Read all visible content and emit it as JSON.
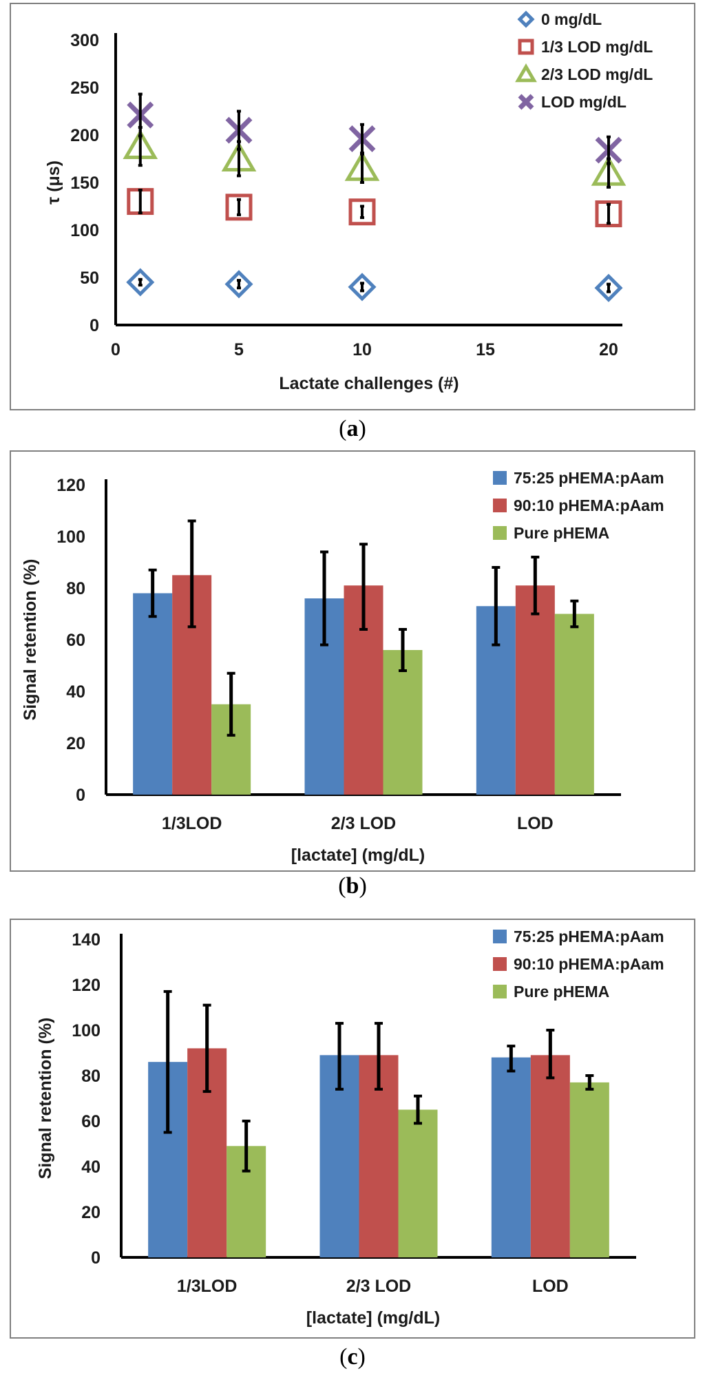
{
  "captions": {
    "a": "a",
    "b": "b",
    "c": "c"
  },
  "chart_data": [
    {
      "id": "a",
      "type": "scatter",
      "title": "",
      "xlabel": "Lactate challenges (#)",
      "ylabel": "τ (μs)",
      "xlim": [
        0,
        20
      ],
      "ylim": [
        0,
        300
      ],
      "xticks": [
        0,
        5,
        10,
        15,
        20
      ],
      "yticks": [
        0,
        50,
        100,
        150,
        200,
        250,
        300
      ],
      "legend_position": "top-right",
      "x": [
        1,
        5,
        10,
        20
      ],
      "series": [
        {
          "name": "0 mg/dL",
          "marker": "diamond",
          "color": "#4f81bd",
          "values": [
            45,
            43,
            40,
            39
          ],
          "err": [
            3,
            4,
            4,
            4
          ]
        },
        {
          "name": "1/3 LOD mg/dL",
          "marker": "square",
          "color": "#c0504d",
          "values": [
            130,
            124,
            119,
            117
          ],
          "err": [
            12,
            8,
            6,
            10
          ]
        },
        {
          "name": "2/3 LOD mg/dL",
          "marker": "triangle",
          "color": "#9bbb59",
          "values": [
            188,
            175,
            165,
            160
          ],
          "err": [
            20,
            18,
            15,
            15
          ]
        },
        {
          "name": "LOD mg/dL",
          "marker": "x",
          "color": "#8064a2",
          "values": [
            221,
            205,
            196,
            184
          ],
          "err": [
            22,
            20,
            15,
            14
          ]
        }
      ]
    },
    {
      "id": "b",
      "type": "bar",
      "title": "",
      "xlabel": "[lactate] (mg/dL)",
      "ylabel": "Signal retention (%)",
      "ylim": [
        0,
        120
      ],
      "yticks": [
        0,
        20,
        40,
        60,
        80,
        100,
        120
      ],
      "legend_position": "top-right",
      "categories": [
        "1/3LOD",
        "2/3 LOD",
        "LOD"
      ],
      "series": [
        {
          "name": "75:25 pHEMA:pAam",
          "color": "#4f81bd",
          "values": [
            78,
            76,
            73
          ],
          "err_low": [
            69,
            58,
            58
          ],
          "err_high": [
            87,
            94,
            88
          ]
        },
        {
          "name": "90:10 pHEMA:pAam",
          "color": "#c0504d",
          "values": [
            85,
            81,
            81
          ],
          "err_low": [
            65,
            64,
            70
          ],
          "err_high": [
            106,
            97,
            92
          ]
        },
        {
          "name": "Pure pHEMA",
          "color": "#9bbb59",
          "values": [
            35,
            56,
            70
          ],
          "err_low": [
            23,
            48,
            65
          ],
          "err_high": [
            47,
            64,
            75
          ]
        }
      ]
    },
    {
      "id": "c",
      "type": "bar",
      "title": "",
      "xlabel": "[lactate] (mg/dL)",
      "ylabel": "Signal retention (%)",
      "ylim": [
        0,
        140
      ],
      "yticks": [
        0,
        20,
        40,
        60,
        80,
        100,
        120,
        140
      ],
      "legend_position": "top-right",
      "categories": [
        "1/3LOD",
        "2/3 LOD",
        "LOD"
      ],
      "series": [
        {
          "name": "75:25 pHEMA:pAam",
          "color": "#4f81bd",
          "values": [
            86,
            89,
            88
          ],
          "err_low": [
            55,
            74,
            82
          ],
          "err_high": [
            117,
            103,
            93
          ]
        },
        {
          "name": "90:10 pHEMA:pAam",
          "color": "#c0504d",
          "values": [
            92,
            89,
            89
          ],
          "err_low": [
            73,
            74,
            79
          ],
          "err_high": [
            111,
            103,
            100
          ]
        },
        {
          "name": "Pure pHEMA",
          "color": "#9bbb59",
          "values": [
            49,
            65,
            77
          ],
          "err_low": [
            38,
            59,
            74
          ],
          "err_high": [
            60,
            71,
            80
          ]
        }
      ]
    }
  ]
}
